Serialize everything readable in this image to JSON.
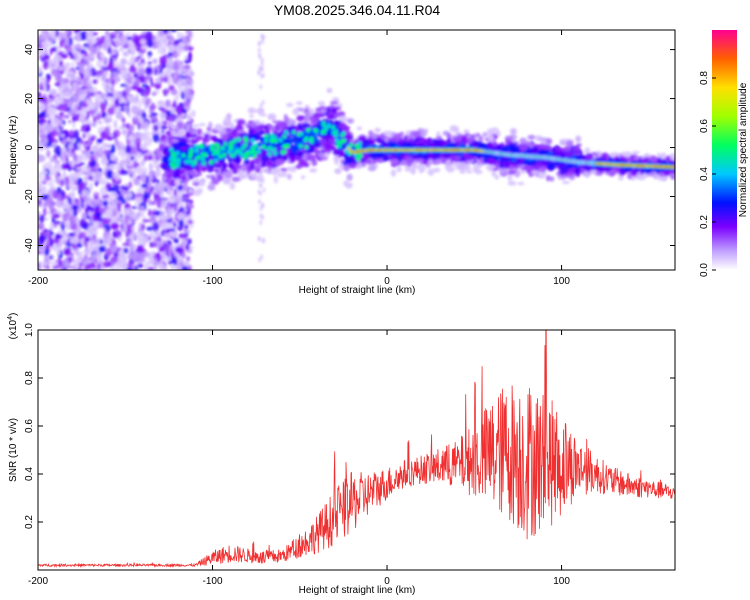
{
  "title": "YM08.2025.346.04.11.R04",
  "colors": {
    "snr_line": "#f03030",
    "axis": "#000000"
  },
  "chart_data": [
    {
      "type": "heatmap",
      "name": "spectrogram",
      "xlabel": "Height of straight line (km)",
      "ylabel": "Frequency (Hz)",
      "xlim": [
        -200,
        165
      ],
      "ylim": [
        -50,
        48
      ],
      "xticks": [
        -200,
        -100,
        0,
        100
      ],
      "yticks": [
        40,
        20,
        0,
        -20,
        -40
      ],
      "ridge": [
        {
          "x": -125,
          "y": -5
        },
        {
          "x": -110,
          "y": -3
        },
        {
          "x": -95,
          "y": -2
        },
        {
          "x": -80,
          "y": 0
        },
        {
          "x": -70,
          "y": 1
        },
        {
          "x": -60,
          "y": 2
        },
        {
          "x": -50,
          "y": 3
        },
        {
          "x": -40,
          "y": 5
        },
        {
          "x": -33,
          "y": 9
        },
        {
          "x": -25,
          "y": 2
        },
        {
          "x": -20,
          "y": -2
        },
        {
          "x": -10,
          "y": -1
        },
        {
          "x": 0,
          "y": -1
        },
        {
          "x": 20,
          "y": -1
        },
        {
          "x": 50,
          "y": -1
        },
        {
          "x": 70,
          "y": -3
        },
        {
          "x": 90,
          "y": -4
        },
        {
          "x": 110,
          "y": -6
        },
        {
          "x": 130,
          "y": -7
        },
        {
          "x": 165,
          "y": -8
        }
      ],
      "colorbar": {
        "label": "Normalized spectral amplitude",
        "ticks": [
          "0.0",
          "0.2",
          "0.4",
          "0.6",
          "0.8"
        ],
        "range": [
          0,
          1
        ]
      }
    },
    {
      "type": "line",
      "name": "snr",
      "xlabel": "Height of straight line (km)",
      "ylabel": "SNR (10 * v/v)",
      "y_multiplier": "(x10",
      "y_multiplier_exp": "4",
      "xlim": [
        -200,
        165
      ],
      "ylim": [
        0,
        1.0
      ],
      "xticks": [
        -200,
        -100,
        0,
        100
      ],
      "yticks": [
        "0.2",
        "0.4",
        "0.6",
        "0.8",
        "1.0"
      ],
      "series": [
        {
          "name": "SNR",
          "x": [
            -200,
            -150,
            -110,
            -100,
            -90,
            -80,
            -70,
            -60,
            -50,
            -40,
            -30,
            -20,
            -10,
            0,
            10,
            20,
            30,
            40,
            50,
            60,
            70,
            80,
            90,
            100,
            110,
            120,
            130,
            140,
            150,
            165
          ],
          "values": [
            0.02,
            0.02,
            0.02,
            0.05,
            0.07,
            0.06,
            0.05,
            0.06,
            0.1,
            0.15,
            0.22,
            0.28,
            0.32,
            0.36,
            0.4,
            0.42,
            0.43,
            0.44,
            0.46,
            0.48,
            0.5,
            0.46,
            0.45,
            0.44,
            0.43,
            0.4,
            0.37,
            0.35,
            0.34,
            0.32
          ],
          "noise_amplitude": [
            0.005,
            0.005,
            0.005,
            0.03,
            0.04,
            0.03,
            0.03,
            0.03,
            0.05,
            0.08,
            0.12,
            0.13,
            0.09,
            0.07,
            0.06,
            0.06,
            0.08,
            0.1,
            0.16,
            0.24,
            0.3,
            0.34,
            0.3,
            0.22,
            0.12,
            0.08,
            0.06,
            0.05,
            0.04,
            0.03
          ]
        }
      ]
    }
  ]
}
